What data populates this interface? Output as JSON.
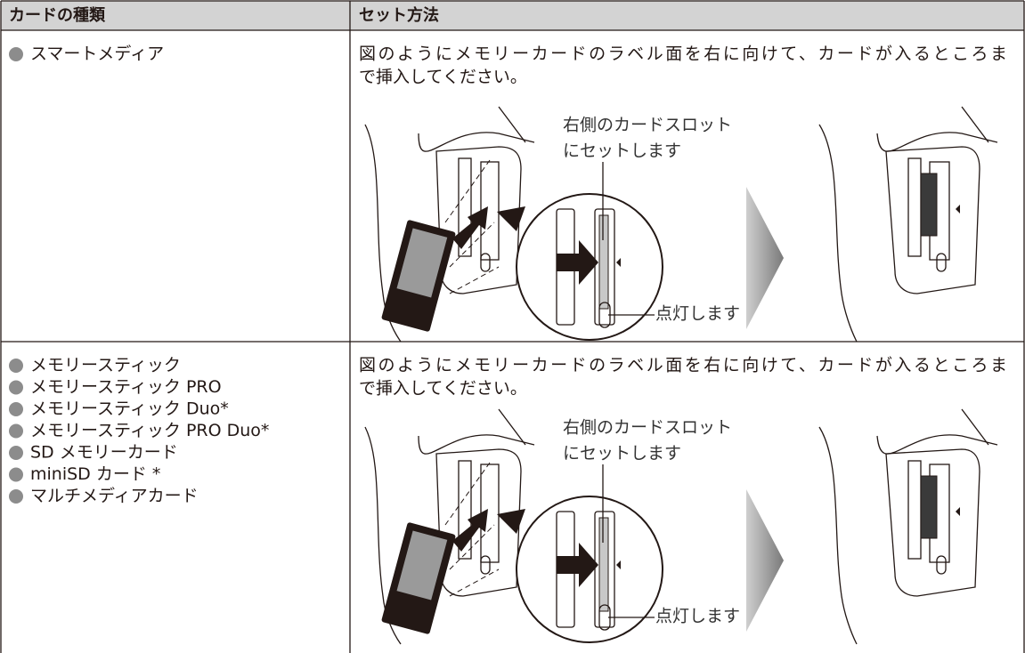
{
  "table": {
    "headers": [
      "カードの種類",
      "セット方法"
    ],
    "rows": [
      {
        "cards": [
          "スマートメディア"
        ],
        "instructions": [
          "図のようにメモリーカードのラベル面を右に向けて、カードが入るところま",
          "で挿入してください。"
        ],
        "slot_label": [
          "右側のカードスロット",
          "にセットします"
        ],
        "light_label": "点灯します"
      },
      {
        "cards": [
          "メモリースティック",
          "メモリースティック PRO",
          "メモリースティック Duo*",
          "メモリースティック PRO Duo*",
          "SD メモリーカード",
          "miniSD カード *",
          "マルチメディアカード"
        ],
        "instructions": [
          "図のようにメモリーカードのラベル面を右に向けて、カードが入るところま",
          "で挿入してください。"
        ],
        "slot_label": [
          "右側のカードスロット",
          "にセットします"
        ],
        "light_label": "点灯します"
      }
    ]
  }
}
